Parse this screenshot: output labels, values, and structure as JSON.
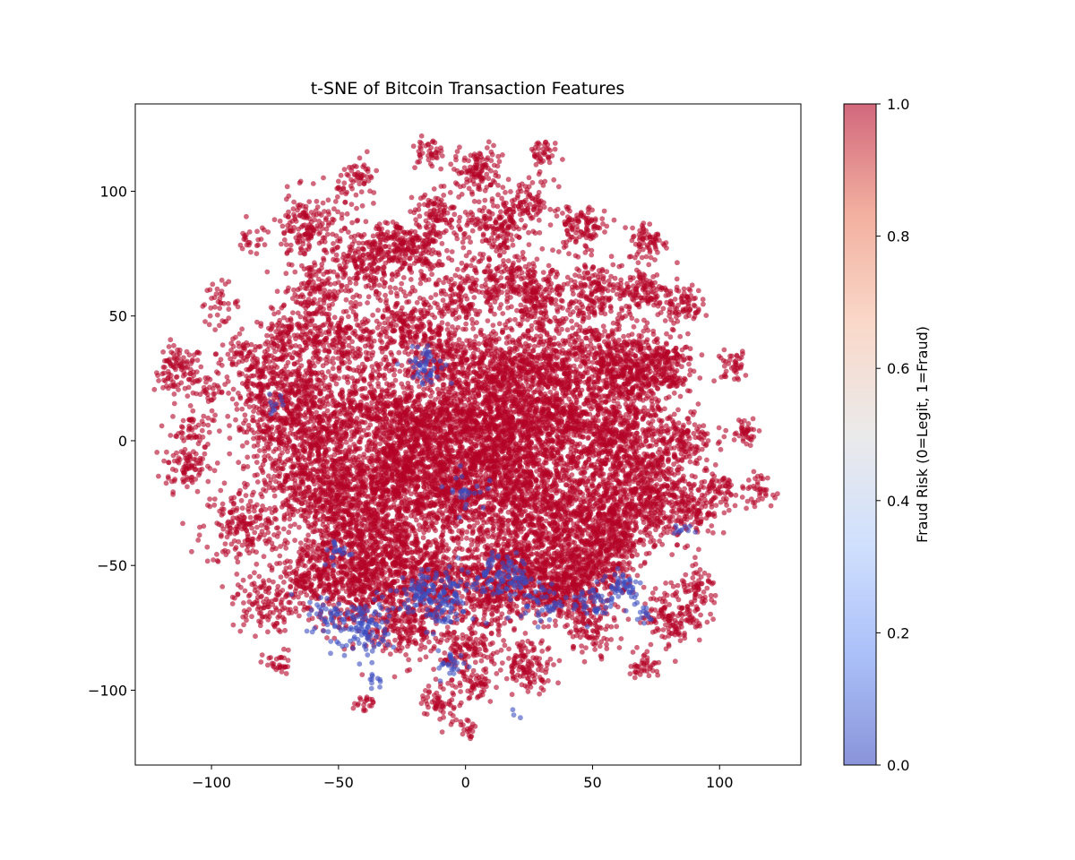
{
  "chart_data": {
    "type": "scatter",
    "title": "t-SNE of Bitcoin Transaction Features",
    "xlabel": "",
    "ylabel": "",
    "xlim": [
      -130,
      132
    ],
    "ylim": [
      -130,
      135
    ],
    "x_ticks": [
      -100,
      -50,
      0,
      50,
      100
    ],
    "y_ticks": [
      -100,
      -50,
      0,
      50,
      100
    ],
    "grid": false,
    "legend": "none",
    "colorbar": {
      "label": "Fraud Risk (0=Legit, 1=Fraud)",
      "range": [
        0,
        1
      ],
      "ticks": [
        0.0,
        0.2,
        0.4,
        0.6,
        0.8,
        1.0
      ],
      "tick_labels": [
        "0.0",
        "0.2",
        "0.4",
        "0.6",
        "0.8",
        "1.0"
      ],
      "colormap": "coolwarm",
      "stops": [
        "#3b4cc0",
        "#7396f5",
        "#b0cbfc",
        "#dddcdc",
        "#f6bfa6",
        "#ea7b60",
        "#b40426"
      ],
      "alpha": 0.6
    },
    "colors": {
      "fraud": "#b40426",
      "legit": "#3b4cc0"
    },
    "series": [
      {
        "value": 1,
        "clusters": [
          [
            -113,
            28,
            5,
            110
          ],
          [
            -110,
            -10,
            5,
            90
          ],
          [
            -108,
            5,
            4,
            50
          ],
          [
            -100,
            20,
            3,
            30
          ],
          [
            -97,
            55,
            4,
            40
          ],
          [
            -90,
            35,
            4,
            40
          ],
          [
            -85,
            80,
            3,
            20
          ],
          [
            -80,
            25,
            6,
            150
          ],
          [
            -88,
            -35,
            8,
            180
          ],
          [
            -80,
            -65,
            6,
            120
          ],
          [
            -74,
            -90,
            3,
            30
          ],
          [
            -75,
            5,
            8,
            220
          ],
          [
            -70,
            40,
            6,
            150
          ],
          [
            -62,
            85,
            7,
            180
          ],
          [
            -60,
            60,
            6,
            140
          ],
          [
            -58,
            -15,
            12,
            700
          ],
          [
            -55,
            10,
            8,
            250
          ],
          [
            -50,
            40,
            8,
            260
          ],
          [
            -42,
            105,
            4,
            60
          ],
          [
            -40,
            70,
            7,
            180
          ],
          [
            -40,
            -35,
            12,
            700
          ],
          [
            -35,
            15,
            8,
            250
          ],
          [
            -30,
            80,
            5,
            100
          ],
          [
            -25,
            45,
            7,
            200
          ],
          [
            -25,
            -10,
            10,
            500
          ],
          [
            -20,
            75,
            6,
            150
          ],
          [
            -15,
            115,
            3,
            40
          ],
          [
            -10,
            90,
            5,
            110
          ],
          [
            -10,
            35,
            7,
            200
          ],
          [
            -15,
            -55,
            9,
            350
          ],
          [
            -5,
            -20,
            12,
            700
          ],
          [
            0,
            60,
            7,
            180
          ],
          [
            5,
            108,
            5,
            120
          ],
          [
            12,
            85,
            6,
            150
          ],
          [
            10,
            30,
            8,
            300
          ],
          [
            15,
            -10,
            12,
            700
          ],
          [
            18,
            65,
            6,
            150
          ],
          [
            20,
            -50,
            10,
            400
          ],
          [
            25,
            95,
            5,
            90
          ],
          [
            30,
            115,
            3,
            40
          ],
          [
            30,
            30,
            8,
            300
          ],
          [
            30,
            55,
            6,
            180
          ],
          [
            35,
            -30,
            12,
            650
          ],
          [
            40,
            10,
            10,
            500
          ],
          [
            45,
            85,
            5,
            110
          ],
          [
            45,
            -55,
            8,
            300
          ],
          [
            50,
            60,
            6,
            160
          ],
          [
            55,
            35,
            8,
            300
          ],
          [
            60,
            0,
            10,
            550
          ],
          [
            60,
            -30,
            9,
            400
          ],
          [
            65,
            25,
            7,
            250
          ],
          [
            70,
            60,
            5,
            120
          ],
          [
            72,
            80,
            4,
            70
          ],
          [
            75,
            -20,
            8,
            300
          ],
          [
            78,
            30,
            6,
            180
          ],
          [
            82,
            -70,
            6,
            150
          ],
          [
            85,
            55,
            4,
            80
          ],
          [
            85,
            0,
            6,
            150
          ],
          [
            90,
            -30,
            5,
            100
          ],
          [
            92,
            -60,
            4,
            60
          ],
          [
            100,
            -20,
            4,
            60
          ],
          [
            105,
            30,
            3,
            40
          ],
          [
            110,
            5,
            3,
            40
          ],
          [
            115,
            -20,
            3,
            40
          ],
          [
            -60,
            -55,
            7,
            200
          ],
          [
            -25,
            -75,
            7,
            200
          ],
          [
            0,
            -85,
            6,
            160
          ],
          [
            25,
            -90,
            5,
            120
          ],
          [
            50,
            -75,
            5,
            100
          ],
          [
            70,
            -90,
            3,
            40
          ],
          [
            -10,
            -105,
            4,
            60
          ],
          [
            5,
            -98,
            3,
            40
          ],
          [
            0,
            -115,
            2,
            20
          ],
          [
            -40,
            -105,
            2,
            20
          ],
          [
            -20,
            5,
            9,
            350
          ],
          [
            0,
            10,
            10,
            450
          ],
          [
            20,
            10,
            9,
            350
          ],
          [
            -45,
            -60,
            8,
            250
          ],
          [
            10,
            -60,
            8,
            280
          ],
          [
            35,
            -60,
            6,
            160
          ],
          [
            -65,
            20,
            6,
            150
          ],
          [
            55,
            -45,
            7,
            200
          ],
          [
            -30,
            -50,
            8,
            250
          ]
        ]
      },
      {
        "value": 0,
        "clusters": [
          [
            -15,
            30,
            4,
            50
          ],
          [
            -40,
            -75,
            6,
            110
          ],
          [
            -10,
            -65,
            6,
            110
          ],
          [
            -20,
            -60,
            4,
            40
          ],
          [
            10,
            -55,
            5,
            60
          ],
          [
            20,
            -55,
            4,
            40
          ],
          [
            30,
            -65,
            4,
            40
          ],
          [
            50,
            -65,
            4,
            40
          ],
          [
            62,
            -58,
            4,
            50
          ],
          [
            -5,
            -90,
            3,
            25
          ],
          [
            -55,
            -70,
            4,
            35
          ],
          [
            -50,
            -45,
            3,
            20
          ],
          [
            -35,
            -95,
            2,
            10
          ],
          [
            85,
            -35,
            2,
            10
          ],
          [
            0,
            -20,
            4,
            25
          ],
          [
            -75,
            15,
            2,
            10
          ],
          [
            70,
            -70,
            2,
            12
          ],
          [
            20,
            -110,
            1,
            3
          ]
        ]
      }
    ]
  }
}
